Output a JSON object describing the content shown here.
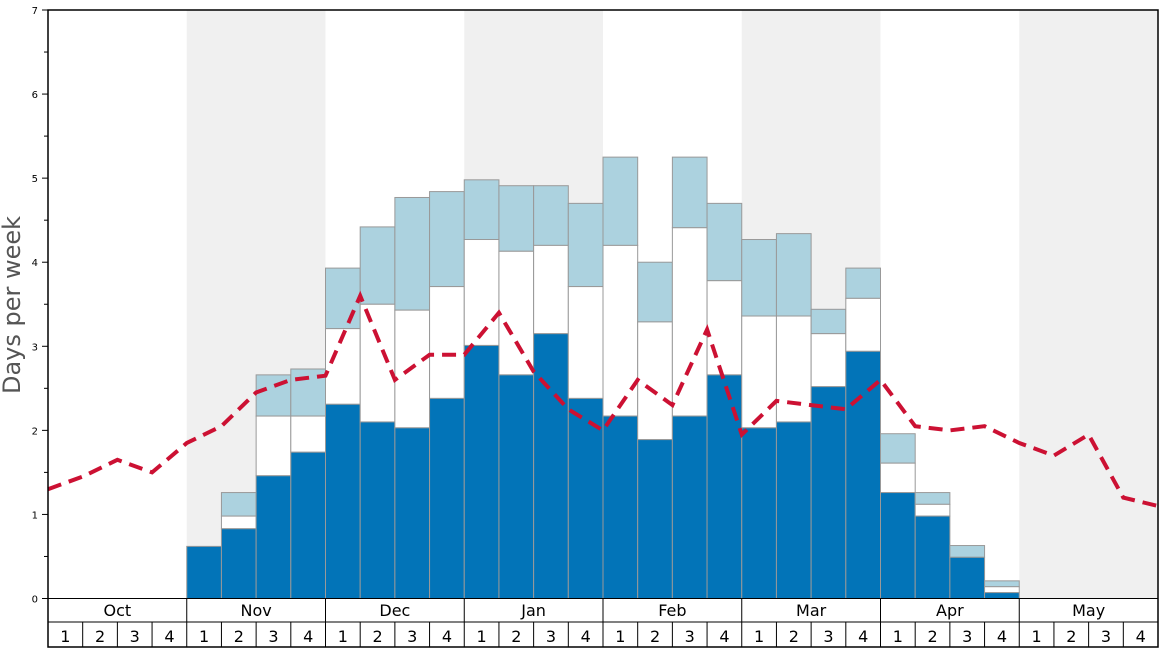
{
  "chart_data": {
    "type": "bar",
    "ylabel": "Days per week",
    "ylim": [
      0,
      7
    ],
    "yticks": [
      0,
      1,
      2,
      3,
      4,
      5,
      6,
      7
    ],
    "months": [
      "Oct",
      "Nov",
      "Dec",
      "Jan",
      "Feb",
      "Mar",
      "Apr",
      "May"
    ],
    "weeks": [
      "1",
      "2",
      "3",
      "4"
    ],
    "colors": {
      "series_bottom": "#0274b8",
      "series_middle": "#ffffff",
      "series_top": "#acd2df",
      "line": "#cc1133",
      "shade": "#f0f0f0",
      "bar_stroke": "#999999"
    },
    "stacks": [
      [
        0,
        0,
        0
      ],
      [
        0,
        0,
        0
      ],
      [
        0,
        0,
        0
      ],
      [
        0,
        0,
        0
      ],
      [
        0.62,
        0,
        0
      ],
      [
        0.83,
        0.98,
        1.26
      ],
      [
        1.46,
        2.17,
        2.66
      ],
      [
        1.74,
        2.17,
        2.73
      ],
      [
        2.31,
        3.21,
        3.93
      ],
      [
        2.1,
        3.5,
        4.42
      ],
      [
        2.03,
        3.43,
        4.77
      ],
      [
        2.38,
        3.71,
        4.84
      ],
      [
        3.01,
        4.27,
        4.98
      ],
      [
        2.66,
        4.13,
        4.91
      ],
      [
        3.15,
        4.2,
        4.91
      ],
      [
        2.38,
        3.71,
        4.7
      ],
      [
        2.17,
        4.2,
        5.25
      ],
      [
        1.89,
        3.29,
        4.0
      ],
      [
        2.17,
        4.41,
        5.25
      ],
      [
        2.66,
        3.78,
        4.7
      ],
      [
        2.03,
        3.36,
        4.27
      ],
      [
        2.1,
        3.36,
        4.34
      ],
      [
        2.52,
        3.15,
        3.44
      ],
      [
        2.94,
        3.57,
        3.93
      ],
      [
        1.26,
        1.61,
        1.96
      ],
      [
        0.98,
        1.12,
        1.26
      ],
      [
        0.49,
        0.49,
        0.63
      ],
      [
        0.07,
        0.14,
        0.21
      ],
      [
        0,
        0,
        0
      ],
      [
        0,
        0,
        0
      ],
      [
        0,
        0,
        0
      ],
      [
        0,
        0,
        0
      ]
    ],
    "line": [
      1.3,
      1.45,
      1.65,
      1.5,
      1.85,
      2.05,
      2.45,
      2.6,
      2.65,
      3.6,
      2.6,
      2.9,
      2.9,
      3.4,
      2.7,
      2.25,
      2.0,
      2.6,
      2.3,
      3.2,
      1.95,
      2.35,
      2.3,
      2.25,
      2.6,
      2.05,
      2.0,
      2.05,
      1.85,
      1.7,
      1.95,
      1.2,
      1.1
    ],
    "line_x": [
      0,
      1,
      2,
      3,
      4,
      5,
      6,
      7,
      8,
      9,
      10,
      11,
      12,
      13,
      14,
      15,
      16,
      17,
      18,
      19,
      20,
      21,
      22,
      23,
      24,
      25,
      26,
      27,
      28,
      29,
      30,
      31,
      32
    ]
  }
}
